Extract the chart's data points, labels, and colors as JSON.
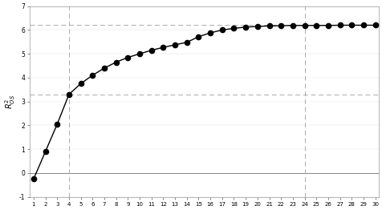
{
  "x": [
    1,
    2,
    3,
    4,
    5,
    6,
    7,
    8,
    9,
    10,
    11,
    12,
    13,
    14,
    15,
    16,
    17,
    18,
    19,
    20,
    21,
    22,
    23,
    24,
    25,
    26,
    27,
    28,
    29,
    30
  ],
  "y": [
    -0.25,
    0.9,
    2.05,
    3.3,
    3.75,
    4.1,
    4.4,
    4.65,
    4.85,
    5.0,
    5.15,
    5.27,
    5.38,
    5.48,
    5.72,
    5.88,
    6.0,
    6.07,
    6.12,
    6.15,
    6.17,
    6.18,
    6.19,
    6.19,
    6.19,
    6.19,
    6.2,
    6.2,
    6.2,
    6.2
  ],
  "hline_y": 0.0,
  "dashed_hline1": 6.22,
  "dashed_hline2": 3.3,
  "vline1_x": 4,
  "vline2_x": 24,
  "xlim_min": 0.7,
  "xlim_max": 30.3,
  "ylim": [
    -1,
    7
  ],
  "yticks": [
    -1,
    0,
    1,
    2,
    3,
    4,
    5,
    6,
    7
  ],
  "xticks": [
    1,
    2,
    3,
    4,
    5,
    6,
    7,
    8,
    9,
    10,
    11,
    12,
    13,
    14,
    15,
    16,
    17,
    18,
    19,
    20,
    21,
    22,
    23,
    24,
    25,
    26,
    27,
    28,
    29,
    30
  ],
  "ylabel": "$R^2_{OS}$",
  "line_color": "#000000",
  "marker_color": "#000000",
  "bg_color": "#ffffff",
  "dashed_color": "#aaaaaa",
  "solid_hline_color": "#888888",
  "spine_color": "#999999",
  "tick_color": "#555555"
}
